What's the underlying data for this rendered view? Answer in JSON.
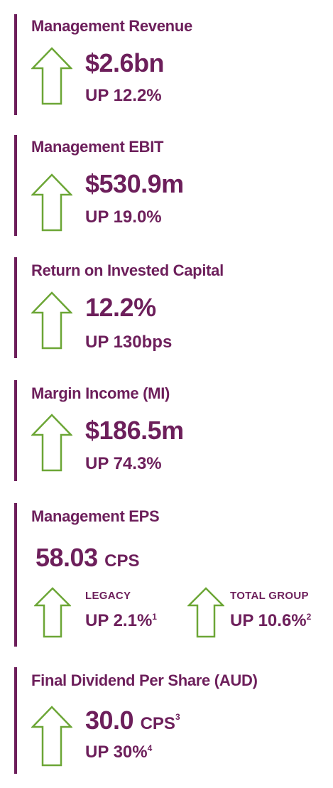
{
  "colors": {
    "accent": "#6d1f5b",
    "arrow": "#6ca636"
  },
  "metrics": [
    {
      "title": "Management Revenue",
      "value": "$2.6bn",
      "change": "UP 12.2%",
      "icon": "up-arrow-icon"
    },
    {
      "title": "Management EBIT",
      "value": "$530.9m",
      "change": "UP 19.0%",
      "icon": "up-arrow-icon"
    },
    {
      "title": "Return on Invested Capital",
      "value": "12.2%",
      "change": "UP 130bps",
      "icon": "up-arrow-icon"
    },
    {
      "title": "Margin Income (MI)",
      "value": "$186.5m",
      "change": "UP 74.3%",
      "icon": "up-arrow-icon"
    }
  ],
  "eps": {
    "title": "Management EPS",
    "value": "58.03",
    "unit": "CPS",
    "legacy": {
      "label": "LEGACY",
      "change": "UP 2.1%",
      "note": "1",
      "icon": "up-arrow-icon"
    },
    "total_group": {
      "label": "TOTAL GROUP",
      "change": "UP 10.6%",
      "note": "2",
      "icon": "up-arrow-icon"
    }
  },
  "dividend": {
    "title": "Final Dividend Per Share (AUD)",
    "value": "30.0",
    "unit": "CPS",
    "unit_note": "3",
    "change": "UP 30%",
    "change_note": "4",
    "icon": "up-arrow-icon"
  }
}
